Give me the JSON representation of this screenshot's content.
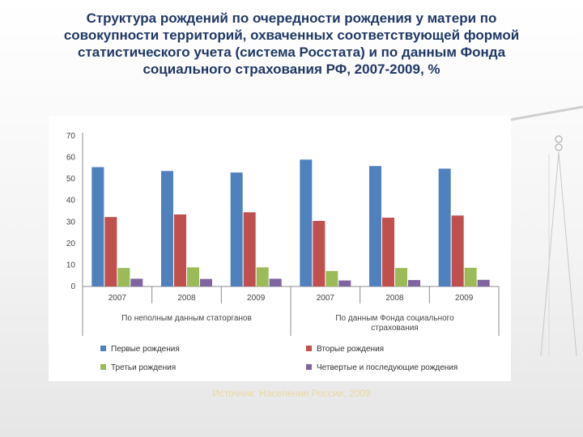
{
  "slide": {
    "title_lines": [
      "Структура рождений по очередности рождения у матери по",
      "совокупности территорий, охваченных соответствующей формой",
      "статистического учета (система Росстата) и по данным Фонда",
      "социального страхования РФ, 2007-2009, %"
    ],
    "source": "Источник: Население России, 2009"
  },
  "chart_data": {
    "type": "bar",
    "title": "",
    "xlabel": "",
    "ylabel": "",
    "ylim": [
      0,
      70
    ],
    "yticks": [
      0,
      10,
      20,
      30,
      40,
      50,
      60,
      70
    ],
    "ytick_labels": [
      "0",
      "10",
      "20",
      "30",
      "40",
      "50",
      "60",
      "70"
    ],
    "categories": [
      "2007",
      "2008",
      "2009",
      "2007",
      "2008",
      "2009"
    ],
    "groups": [
      {
        "label": "По неполным данным статорганов",
        "categories": [
          0,
          1,
          2
        ]
      },
      {
        "label_lines": [
          "По данным Фонда социального",
          "страхования"
        ],
        "categories": [
          3,
          4,
          5
        ]
      }
    ],
    "series": [
      {
        "name": "Первые рождения",
        "color": "#4f81bd",
        "values": [
          55.5,
          53.7,
          53.0,
          59.0,
          56.0,
          54.8
        ]
      },
      {
        "name": "Вторые рождения",
        "color": "#c0504d",
        "values": [
          32.3,
          33.5,
          34.5,
          30.5,
          32.0,
          33.0
        ]
      },
      {
        "name": "Третьи рождения",
        "color": "#9bbb59",
        "values": [
          8.6,
          8.9,
          8.9,
          7.2,
          8.6,
          8.7
        ]
      },
      {
        "name": "Четвертые и последующие рождения",
        "color": "#8064a2",
        "values": [
          3.6,
          3.5,
          3.6,
          2.8,
          3.0,
          3.1
        ]
      }
    ],
    "grid": false,
    "legend_position": "bottom"
  }
}
